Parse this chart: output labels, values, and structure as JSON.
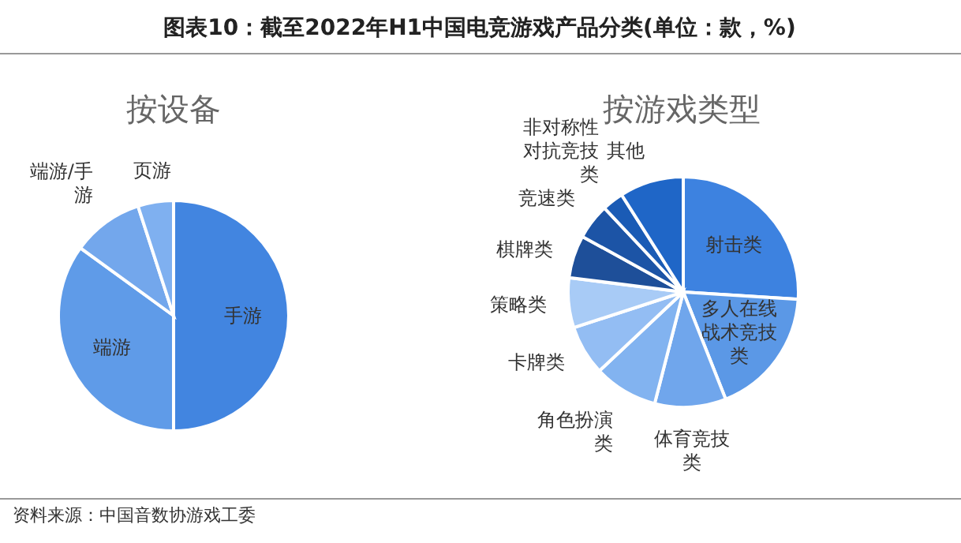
{
  "chart_data": [
    {
      "type": "pie",
      "title": "按设备",
      "categories": [
        "手游",
        "端游",
        "端游/手游",
        "页游"
      ],
      "values": [
        50,
        35,
        10,
        5
      ],
      "colors": [
        "#4285e0",
        "#5f9be8",
        "#73a7ec",
        "#7fb0f0"
      ],
      "annotations": [
        "图表10：截至2022年H1中国电竞游戏产品分类(单位：款，%)"
      ]
    },
    {
      "type": "pie",
      "title": "按游戏类型",
      "categories": [
        "射击类",
        "多人在线战术竞技类",
        "体育竞技类",
        "角色扮演类",
        "卡牌类",
        "策略类",
        "棋牌类",
        "竞速类",
        "非对称性对抗竞技类",
        "其他"
      ],
      "values": [
        26,
        18,
        10,
        9,
        7,
        7,
        6,
        5,
        3,
        9
      ],
      "colors": [
        "#3d82e0",
        "#5b98e6",
        "#70a6ec",
        "#82b3f0",
        "#93bdf3",
        "#a8cbf6",
        "#1e4f99",
        "#1c54a6",
        "#1a5bb5",
        "#1f66c7"
      ],
      "annotations": [
        "资料来源：中国音数协游戏工委"
      ]
    }
  ]
}
